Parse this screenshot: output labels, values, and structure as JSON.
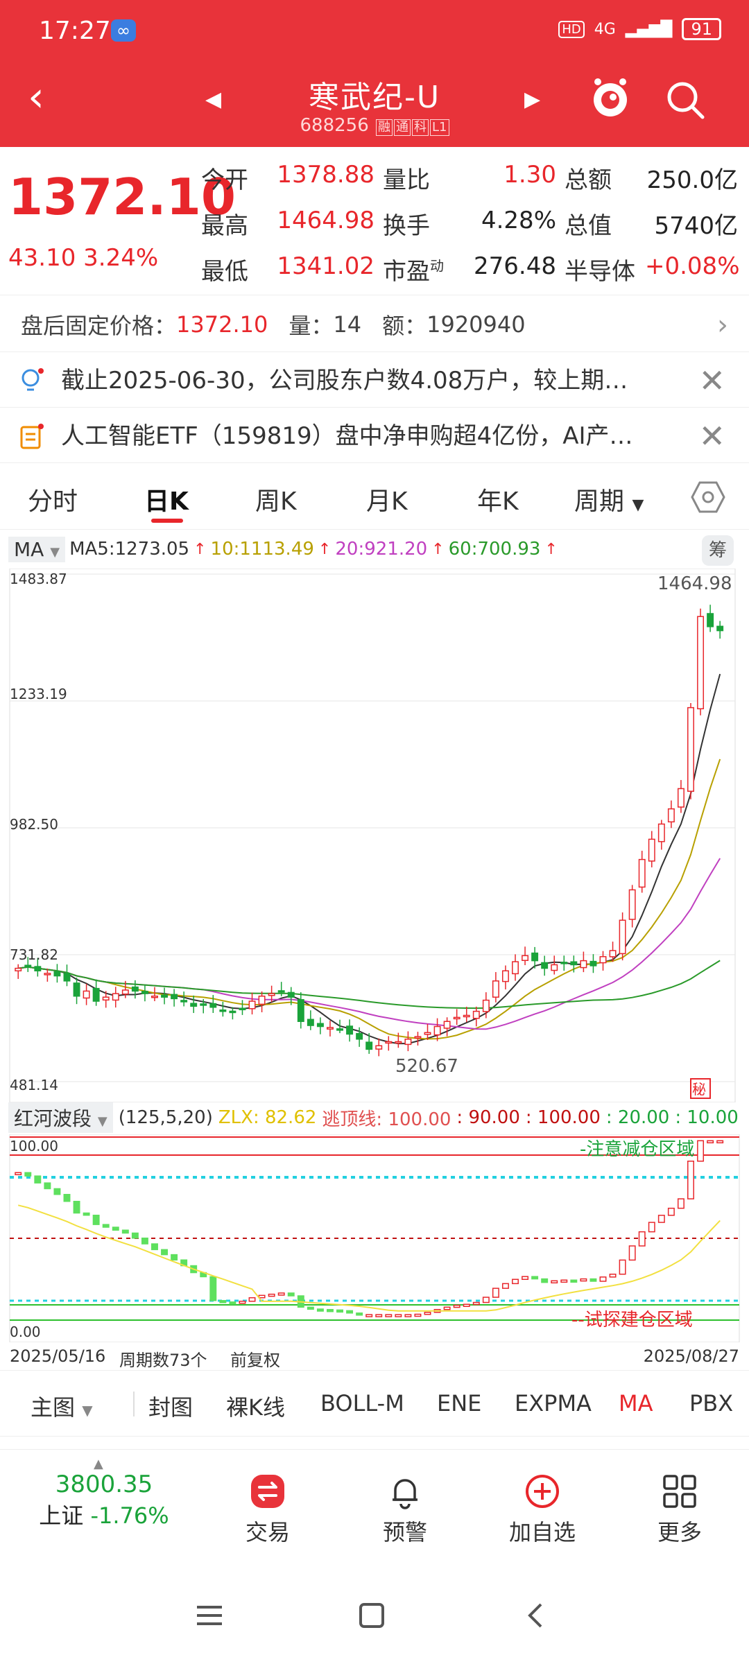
{
  "status": {
    "time": "17:27",
    "network": "4G",
    "battery": "91"
  },
  "header": {
    "name": "寒武纪-U",
    "code": "688256",
    "tags": [
      "融",
      "通",
      "科",
      "L1"
    ]
  },
  "quote": {
    "price": "1372.10",
    "change": "43.10",
    "change_pct": "3.24%",
    "labels": {
      "open": "今开",
      "high": "最高",
      "low": "最低",
      "vol_ratio": "量比",
      "turnover": "换手",
      "pe": "市盈",
      "amount": "总额",
      "mktcap": "总值"
    },
    "pe_sup": "动",
    "open": "1378.88",
    "high": "1464.98",
    "low": "1341.02",
    "vol_ratio": "1.30",
    "turnover": "4.28%",
    "pe": "276.48",
    "amount": "250.0亿",
    "mktcap": "5740亿",
    "sector": "半导体",
    "sector_pct": "+0.08%"
  },
  "post": {
    "label": "盘后固定价格：",
    "price": "1372.10",
    "vol_label": "量：",
    "vol": "14",
    "amt_label": "额：",
    "amt": "1920940"
  },
  "news": [
    {
      "text": "截止2025-06-30，公司股东户数4.08万户，较上期…"
    },
    {
      "text": "人工智能ETF（159819）盘中净申购超4亿份，AI产…"
    }
  ],
  "tabs": [
    "分时",
    "日K",
    "周K",
    "月K",
    "年K",
    "周期"
  ],
  "ma": {
    "select": "MA",
    "ma5": "MA5:1273.05",
    "ma10": "10:1113.49",
    "ma20": "20:921.20",
    "ma60": "60:700.93"
  },
  "chip_btn": "筹",
  "kchart": {
    "y_ticks": [
      "1483.87",
      "1233.19",
      "982.50",
      "731.82",
      "481.14"
    ],
    "high_label": "1464.98",
    "low_label": "520.67",
    "badge": "秘"
  },
  "indicator": {
    "select": "红河波段",
    "params": "(125,5,20)",
    "zlx": "ZLX: 82.62",
    "top_line": "逃顶线: 100.00",
    "v90": ": 90.00",
    "v100": ": 100.00",
    "v20": ": 20.00",
    "v10": ": 10.00",
    "y_top": "100.00",
    "y_bottom": "0.00",
    "zone_top": "-注意减仓区域",
    "zone_bottom": "--试探建仓区域"
  },
  "dates": {
    "start": "2025/05/16",
    "cycles": "周期数73个",
    "adjust": "前复权",
    "end": "2025/08/27"
  },
  "ind_tabs": [
    "主图",
    "封图",
    "裸K线",
    "BOLL-M",
    "ENE",
    "EXPMA",
    "MA",
    "PBX"
  ],
  "bottom": {
    "index_value": "3800.35",
    "index_name": "上证",
    "index_pct": "-1.76%",
    "trade": "交易",
    "alert": "预警",
    "add": "加自选",
    "more": "更多"
  },
  "chart_data": {
    "type": "candlestick",
    "ylim": [
      481.14,
      1483.87
    ],
    "y_ticks": [
      1483.87,
      1233.19,
      982.5,
      731.82,
      481.14
    ],
    "x_range": [
      "2025/05/16",
      "2025/08/27"
    ],
    "ma_last": {
      "MA5": 1273.05,
      "MA10": 1113.49,
      "MA20": 921.2,
      "MA60": 700.93
    },
    "high": 1464.98,
    "low": 520.67,
    "closes": [
      705,
      710,
      700,
      695,
      690,
      680,
      650,
      660,
      640,
      648,
      655,
      662,
      660,
      655,
      650,
      648,
      645,
      640,
      630,
      632,
      628,
      622,
      620,
      625,
      640,
      650,
      655,
      660,
      648,
      600,
      592,
      590,
      588,
      585,
      575,
      565,
      545,
      552,
      560,
      560,
      565,
      570,
      578,
      590,
      600,
      608,
      612,
      620,
      642,
      680,
      700,
      718,
      730,
      720,
      705,
      712,
      715,
      712,
      720,
      710,
      728,
      740,
      800,
      860,
      920,
      960,
      990,
      1020,
      1060,
      1220,
      1400,
      1380,
      1372.1
    ]
  }
}
